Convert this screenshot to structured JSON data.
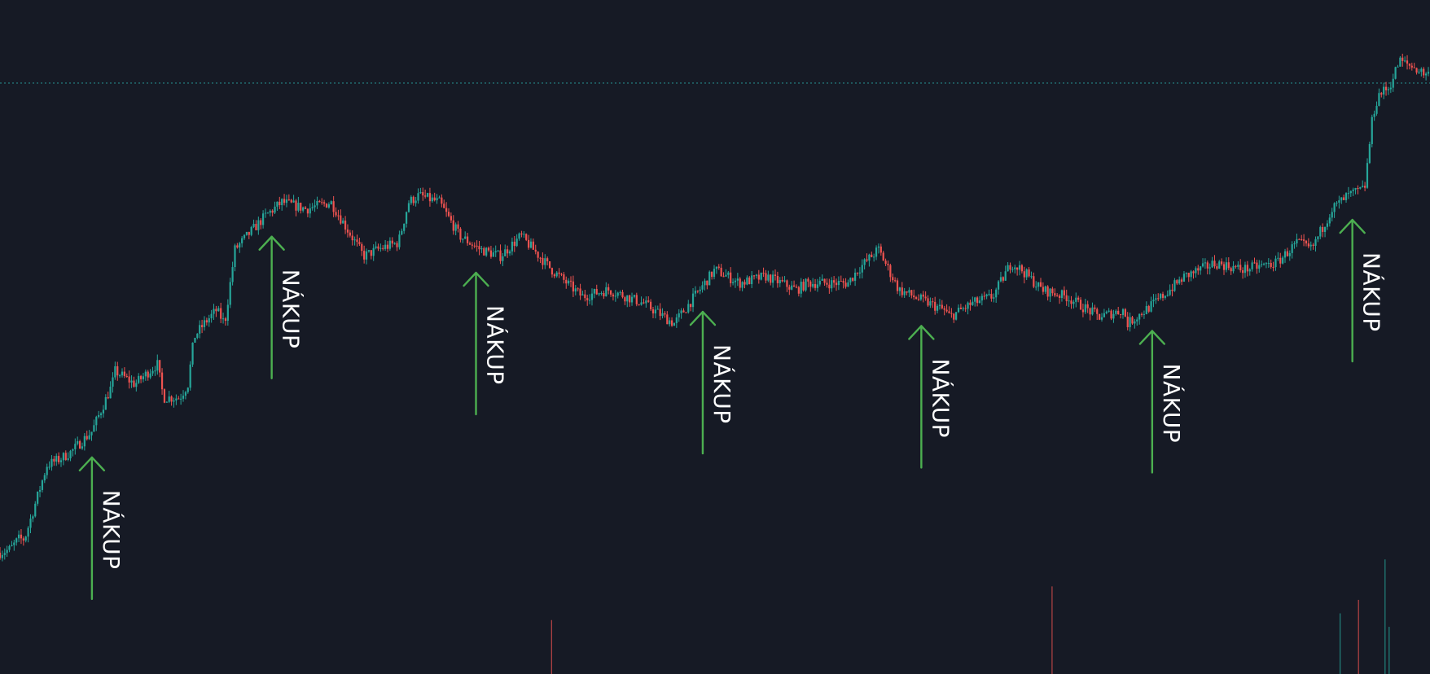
{
  "chart_data": {
    "type": "candlestick",
    "title": "",
    "xlabel": "",
    "ylabel": "",
    "grid": false,
    "legend": "none",
    "colors": {
      "background": "#161a25",
      "up_candle": "#26a69a",
      "down_candle": "#ef5350",
      "signal_arrow": "#4caf50",
      "signal_text": "#ffffff",
      "reference_line": "#2aa9a6"
    },
    "y_range": [
      0,
      100
    ],
    "reference_level": 92,
    "price_path": [
      [
        0,
        18
      ],
      [
        5,
        18.5
      ],
      [
        9,
        20
      ],
      [
        12,
        20
      ],
      [
        15,
        23
      ],
      [
        23,
        31
      ],
      [
        30,
        32
      ],
      [
        35,
        33
      ],
      [
        45,
        36
      ],
      [
        55,
        43
      ],
      [
        56,
        45
      ],
      [
        66,
        43
      ],
      [
        77,
        46
      ],
      [
        80,
        41
      ],
      [
        88,
        41
      ],
      [
        92,
        43
      ],
      [
        95,
        50
      ],
      [
        100,
        52
      ],
      [
        106,
        54
      ],
      [
        110,
        52
      ],
      [
        115,
        63
      ],
      [
        130,
        68
      ],
      [
        138,
        70
      ],
      [
        150,
        69
      ],
      [
        162,
        70
      ],
      [
        170,
        66
      ],
      [
        178,
        62
      ],
      [
        185,
        63
      ],
      [
        195,
        64
      ],
      [
        200,
        70
      ],
      [
        205,
        71
      ],
      [
        215,
        70
      ],
      [
        225,
        65
      ],
      [
        235,
        63
      ],
      [
        245,
        62
      ],
      [
        255,
        65
      ],
      [
        270,
        60
      ],
      [
        285,
        56
      ],
      [
        298,
        57
      ],
      [
        315,
        55
      ],
      [
        330,
        52
      ],
      [
        345,
        58
      ],
      [
        350,
        60
      ],
      [
        362,
        58
      ],
      [
        375,
        59
      ],
      [
        390,
        57
      ],
      [
        395,
        58
      ],
      [
        415,
        58
      ],
      [
        420,
        60
      ],
      [
        430,
        63
      ],
      [
        440,
        57
      ],
      [
        462,
        54
      ],
      [
        465,
        53
      ],
      [
        476,
        55
      ],
      [
        486,
        56
      ],
      [
        495,
        61
      ],
      [
        500,
        60
      ],
      [
        510,
        57
      ],
      [
        522,
        56
      ],
      [
        538,
        53
      ],
      [
        550,
        54
      ],
      [
        552,
        52
      ],
      [
        565,
        55
      ],
      [
        580,
        59
      ],
      [
        595,
        61
      ],
      [
        608,
        60
      ],
      [
        625,
        61
      ],
      [
        635,
        64
      ],
      [
        642,
        63
      ],
      [
        652,
        69
      ],
      [
        660,
        71
      ],
      [
        668,
        72
      ],
      [
        672,
        83
      ],
      [
        675,
        86
      ],
      [
        680,
        87
      ],
      [
        685,
        91
      ],
      [
        692,
        90
      ],
      [
        698,
        89
      ]
    ],
    "volume_spikes": [
      {
        "x": 270,
        "value": 8,
        "direction": "down"
      },
      {
        "x": 515,
        "value": 13,
        "direction": "down"
      },
      {
        "x": 656,
        "value": 9,
        "direction": "up"
      },
      {
        "x": 665,
        "value": 11,
        "direction": "down"
      },
      {
        "x": 678,
        "value": 17,
        "direction": "up"
      },
      {
        "x": 680,
        "value": 7,
        "direction": "up"
      }
    ],
    "signals": [
      {
        "x": 45,
        "label": "NÁKUP"
      },
      {
        "x": 133,
        "label": "NÁKUP"
      },
      {
        "x": 233,
        "label": "NÁKUP"
      },
      {
        "x": 344,
        "label": "NÁKUP"
      },
      {
        "x": 451,
        "label": "NÁKUP"
      },
      {
        "x": 564,
        "label": "NÁKUP"
      },
      {
        "x": 662,
        "label": "NÁKUP"
      }
    ]
  }
}
